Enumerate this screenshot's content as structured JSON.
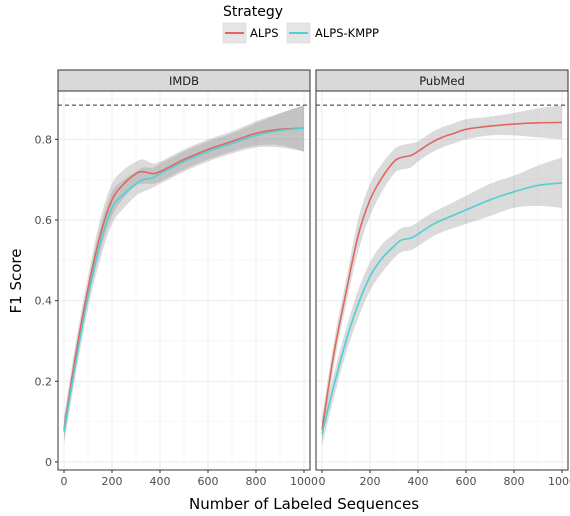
{
  "chart_data": {
    "type": "line",
    "xlabel": "Number of Labeled Sequences",
    "ylabel": "F1 Score",
    "xlim": [
      -25,
      1025
    ],
    "ylim": [
      -0.02,
      0.92
    ],
    "x_ticks": [
      0,
      200,
      400,
      600,
      800,
      1000
    ],
    "y_ticks": [
      0,
      0.2,
      0.4,
      0.6,
      0.8
    ],
    "x_tick_labels": [
      "0",
      "200",
      "400",
      "600",
      "800",
      "1000"
    ],
    "y_tick_labels": [
      "0",
      "0.2",
      "0.4",
      "0.6",
      "0.8"
    ],
    "grid": true,
    "reference_line": 0.885,
    "legend": {
      "title": "Strategy",
      "position": "top",
      "entries": [
        {
          "label": "ALPS",
          "color": "#E0675F"
        },
        {
          "label": "ALPS-KMPP",
          "color": "#4FCFD6"
        }
      ]
    },
    "panels": [
      {
        "title": "IMDB",
        "series": [
          {
            "name": "ALPS",
            "color": "#E0675F",
            "x": [
              0,
              50,
              100,
              150,
              200,
              250,
              300,
              330,
              370,
              400,
              450,
              500,
              600,
              700,
              800,
              900,
              1000
            ],
            "y": [
              0.08,
              0.27,
              0.43,
              0.56,
              0.65,
              0.69,
              0.715,
              0.72,
              0.715,
              0.72,
              0.735,
              0.75,
              0.775,
              0.795,
              0.815,
              0.825,
              0.828
            ],
            "lower": [
              0.05,
              0.24,
              0.4,
              0.52,
              0.61,
              0.655,
              0.685,
              0.69,
              0.69,
              0.695,
              0.71,
              0.725,
              0.75,
              0.77,
              0.785,
              0.785,
              0.77
            ],
            "upper": [
              0.11,
              0.3,
              0.46,
              0.6,
              0.69,
              0.725,
              0.745,
              0.75,
              0.74,
              0.745,
              0.76,
              0.775,
              0.8,
              0.82,
              0.845,
              0.865,
              0.885
            ]
          },
          {
            "name": "ALPS-KMPP",
            "color": "#4FCFD6",
            "x": [
              0,
              50,
              100,
              150,
              200,
              250,
              300,
              330,
              370,
              400,
              450,
              500,
              600,
              700,
              800,
              900,
              1000
            ],
            "y": [
              0.075,
              0.25,
              0.41,
              0.54,
              0.63,
              0.665,
              0.69,
              0.7,
              0.705,
              0.715,
              0.73,
              0.745,
              0.77,
              0.79,
              0.81,
              0.822,
              0.828
            ],
            "lower": [
              0.045,
              0.22,
              0.38,
              0.5,
              0.59,
              0.63,
              0.66,
              0.67,
              0.68,
              0.69,
              0.705,
              0.72,
              0.745,
              0.765,
              0.78,
              0.78,
              0.77
            ],
            "upper": [
              0.105,
              0.28,
              0.44,
              0.58,
              0.67,
              0.7,
              0.72,
              0.73,
              0.73,
              0.74,
              0.755,
              0.77,
              0.795,
              0.815,
              0.84,
              0.864,
              0.885
            ]
          }
        ]
      },
      {
        "title": "PubMed",
        "series": [
          {
            "name": "ALPS",
            "color": "#E0675F",
            "x": [
              0,
              50,
              100,
              150,
              200,
              250,
              300,
              330,
              370,
              400,
              450,
              500,
              550,
              600,
              700,
              800,
              900,
              1000
            ],
            "y": [
              0.08,
              0.27,
              0.42,
              0.56,
              0.65,
              0.705,
              0.745,
              0.755,
              0.76,
              0.77,
              0.79,
              0.805,
              0.815,
              0.825,
              0.833,
              0.838,
              0.841,
              0.842
            ],
            "lower": [
              0.05,
              0.24,
              0.39,
              0.52,
              0.61,
              0.67,
              0.715,
              0.725,
              0.73,
              0.745,
              0.765,
              0.78,
              0.79,
              0.8,
              0.81,
              0.81,
              0.805,
              0.8
            ],
            "upper": [
              0.11,
              0.3,
              0.45,
              0.6,
              0.69,
              0.74,
              0.775,
              0.785,
              0.79,
              0.795,
              0.815,
              0.83,
              0.84,
              0.85,
              0.856,
              0.866,
              0.877,
              0.884
            ]
          },
          {
            "name": "ALPS-KMPP",
            "color": "#4FCFD6",
            "x": [
              0,
              50,
              100,
              150,
              200,
              250,
              300,
              330,
              370,
              400,
              450,
              500,
              600,
              700,
              800,
              900,
              1000
            ],
            "y": [
              0.07,
              0.19,
              0.3,
              0.39,
              0.46,
              0.505,
              0.535,
              0.55,
              0.555,
              0.565,
              0.585,
              0.6,
              0.625,
              0.65,
              0.67,
              0.686,
              0.692
            ],
            "lower": [
              0.04,
              0.16,
              0.27,
              0.355,
              0.425,
              0.47,
              0.505,
              0.52,
              0.525,
              0.535,
              0.555,
              0.57,
              0.59,
              0.61,
              0.63,
              0.635,
              0.63
            ],
            "upper": [
              0.1,
              0.22,
              0.33,
              0.425,
              0.495,
              0.54,
              0.565,
              0.58,
              0.585,
              0.595,
              0.615,
              0.63,
              0.66,
              0.69,
              0.71,
              0.735,
              0.755
            ]
          }
        ]
      }
    ]
  }
}
